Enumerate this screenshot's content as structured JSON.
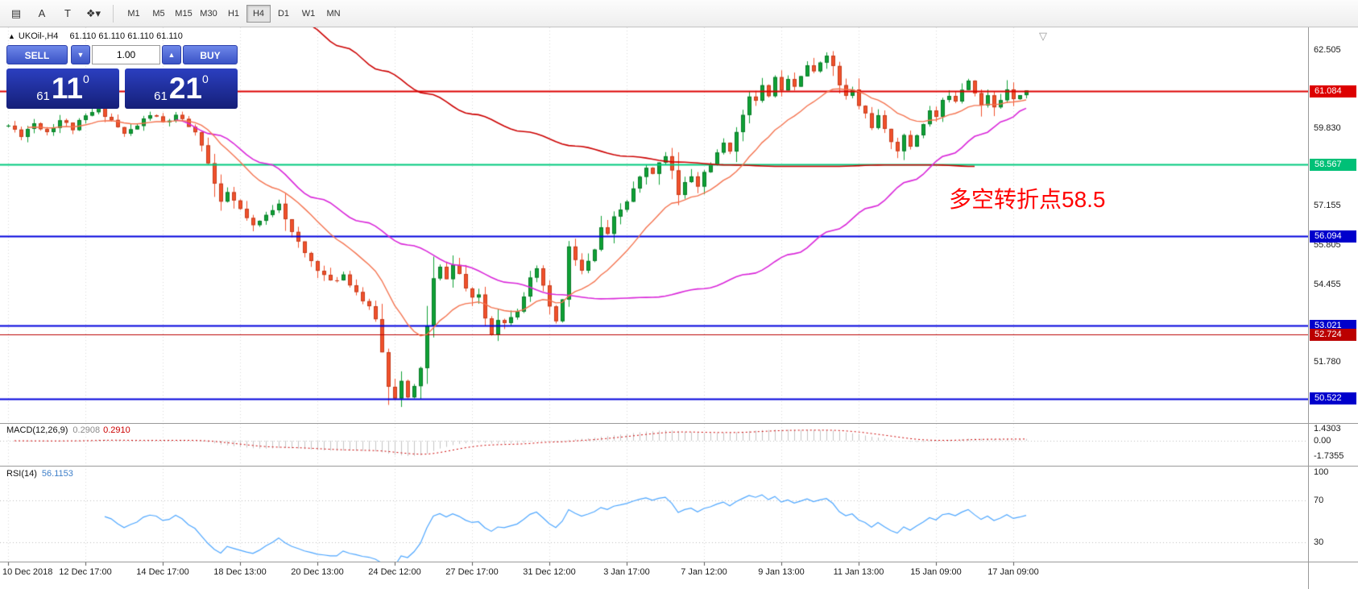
{
  "toolbar": {
    "icons": [
      {
        "name": "chart-grid-icon",
        "glyph": "▤"
      },
      {
        "name": "font-tool-icon",
        "glyph": "A"
      },
      {
        "name": "text-tool-icon",
        "glyph": "T"
      },
      {
        "name": "shapes-dropdown-icon",
        "glyph": "❖▾"
      }
    ],
    "timeframes": [
      {
        "label": "M1"
      },
      {
        "label": "M5"
      },
      {
        "label": "M15"
      },
      {
        "label": "M30"
      },
      {
        "label": "H1"
      },
      {
        "label": "H4",
        "selected": true
      },
      {
        "label": "D1"
      },
      {
        "label": "W1"
      },
      {
        "label": "MN"
      }
    ]
  },
  "symbol_info": {
    "collapse": "▲",
    "text": "UKOil-,H4",
    "ohlc": "61.110 61.110 61.110 61.110"
  },
  "trade_widget": {
    "sell_label": "SELL",
    "buy_label": "BUY",
    "volume": "1.00",
    "spin_down": "▼",
    "spin_up": "▲",
    "sell_price": {
      "small": "61",
      "big": "11",
      "sup": "0"
    },
    "buy_price": {
      "small": "61",
      "big": "21",
      "sup": "0"
    }
  },
  "annotation": {
    "text": "多空转折点58.5",
    "color": "#FF0000"
  },
  "chart_shift_marker": "▽",
  "chart_data": {
    "type": "candlestick",
    "symbol": "UKOil-",
    "timeframe": "H4",
    "bars": 159,
    "last_close": 61.11,
    "close_anchors": [
      [
        0,
        59.9
      ],
      [
        2,
        59.6
      ],
      [
        4,
        60.0
      ],
      [
        6,
        59.7
      ],
      [
        8,
        60.1
      ],
      [
        10,
        59.8
      ],
      [
        12,
        60.2
      ],
      [
        14,
        60.5
      ],
      [
        16,
        60.1
      ],
      [
        18,
        59.6
      ],
      [
        20,
        59.9
      ],
      [
        22,
        60.3
      ],
      [
        24,
        60.0
      ],
      [
        26,
        60.2
      ],
      [
        28,
        59.9
      ],
      [
        30,
        59.3
      ],
      [
        32,
        57.9
      ],
      [
        33,
        57.2
      ],
      [
        34,
        57.6
      ],
      [
        36,
        57.0
      ],
      [
        38,
        56.4
      ],
      [
        40,
        56.8
      ],
      [
        42,
        57.3
      ],
      [
        44,
        56.2
      ],
      [
        46,
        55.5
      ],
      [
        48,
        55.0
      ],
      [
        50,
        54.5
      ],
      [
        52,
        54.8
      ],
      [
        54,
        54.2
      ],
      [
        55,
        53.9
      ],
      [
        56,
        53.6
      ],
      [
        57,
        53.3
      ],
      [
        58,
        52.1
      ],
      [
        59,
        51.0
      ],
      [
        60,
        50.6
      ],
      [
        61,
        51.1
      ],
      [
        62,
        50.5
      ],
      [
        63,
        50.9
      ],
      [
        64,
        51.6
      ],
      [
        65,
        53.0
      ],
      [
        66,
        54.6
      ],
      [
        67,
        55.0
      ],
      [
        68,
        54.7
      ],
      [
        69,
        55.1
      ],
      [
        70,
        54.8
      ],
      [
        71,
        54.3
      ],
      [
        72,
        53.9
      ],
      [
        73,
        54.1
      ],
      [
        74,
        53.3
      ],
      [
        75,
        52.8
      ],
      [
        76,
        53.3
      ],
      [
        77,
        53.1
      ],
      [
        78,
        53.4
      ],
      [
        79,
        53.6
      ],
      [
        80,
        54.1
      ],
      [
        81,
        54.6
      ],
      [
        82,
        54.9
      ],
      [
        83,
        54.4
      ],
      [
        84,
        53.6
      ],
      [
        85,
        53.2
      ],
      [
        86,
        53.9
      ],
      [
        87,
        55.7
      ],
      [
        88,
        55.3
      ],
      [
        89,
        54.9
      ],
      [
        90,
        55.2
      ],
      [
        91,
        55.6
      ],
      [
        92,
        56.4
      ],
      [
        93,
        56.1
      ],
      [
        94,
        56.7
      ],
      [
        95,
        57.0
      ],
      [
        96,
        57.3
      ],
      [
        97,
        57.7
      ],
      [
        98,
        58.1
      ],
      [
        99,
        58.4
      ],
      [
        100,
        58.2
      ],
      [
        101,
        58.7
      ],
      [
        102,
        58.9
      ],
      [
        103,
        58.4
      ],
      [
        104,
        57.5
      ],
      [
        105,
        57.9
      ],
      [
        106,
        58.2
      ],
      [
        107,
        57.8
      ],
      [
        108,
        58.3
      ],
      [
        109,
        58.6
      ],
      [
        110,
        58.9
      ],
      [
        111,
        59.3
      ],
      [
        112,
        59.1
      ],
      [
        113,
        59.6
      ],
      [
        114,
        60.3
      ],
      [
        115,
        61.0
      ],
      [
        116,
        60.7
      ],
      [
        117,
        61.2
      ],
      [
        118,
        61.0
      ],
      [
        119,
        61.5
      ],
      [
        120,
        61.2
      ],
      [
        121,
        61.6
      ],
      [
        122,
        61.3
      ],
      [
        123,
        61.7
      ],
      [
        124,
        62.0
      ],
      [
        125,
        61.7
      ],
      [
        126,
        62.1
      ],
      [
        127,
        62.4
      ],
      [
        128,
        61.9
      ],
      [
        129,
        61.3
      ],
      [
        130,
        60.9
      ],
      [
        131,
        61.1
      ],
      [
        132,
        60.6
      ],
      [
        133,
        60.3
      ],
      [
        134,
        59.9
      ],
      [
        135,
        60.2
      ],
      [
        136,
        59.7
      ],
      [
        137,
        59.4
      ],
      [
        138,
        59.1
      ],
      [
        139,
        59.5
      ],
      [
        140,
        59.2
      ],
      [
        141,
        59.6
      ],
      [
        142,
        60.0
      ],
      [
        143,
        60.4
      ],
      [
        144,
        60.2
      ],
      [
        145,
        60.7
      ],
      [
        146,
        61.0
      ],
      [
        147,
        60.8
      ],
      [
        148,
        61.2
      ],
      [
        149,
        61.5
      ],
      [
        150,
        61.1
      ],
      [
        151,
        60.6
      ],
      [
        152,
        60.9
      ],
      [
        153,
        60.5
      ],
      [
        154,
        60.8
      ],
      [
        155,
        61.2
      ],
      [
        156,
        60.9
      ],
      [
        157,
        61.0
      ],
      [
        158,
        61.11
      ]
    ],
    "ma_red_anchors": [
      [
        46,
        63.4
      ],
      [
        52,
        62.6
      ],
      [
        58,
        61.8
      ],
      [
        65,
        61.0
      ],
      [
        72,
        60.3
      ],
      [
        80,
        59.7
      ],
      [
        88,
        59.2
      ],
      [
        96,
        58.85
      ],
      [
        104,
        58.65
      ],
      [
        112,
        58.55
      ],
      [
        120,
        58.5
      ],
      [
        128,
        58.5
      ],
      [
        136,
        58.55
      ],
      [
        144,
        58.55
      ],
      [
        150,
        58.5
      ]
    ],
    "ma_magenta_anchors": [
      [
        26,
        60.1
      ],
      [
        32,
        59.6
      ],
      [
        40,
        58.6
      ],
      [
        48,
        57.4
      ],
      [
        55,
        56.6
      ],
      [
        62,
        55.8
      ],
      [
        70,
        55.1
      ],
      [
        78,
        54.5
      ],
      [
        85,
        54.1
      ],
      [
        92,
        53.95
      ],
      [
        100,
        54.0
      ],
      [
        108,
        54.3
      ],
      [
        115,
        54.8
      ],
      [
        122,
        55.5
      ],
      [
        128,
        56.3
      ],
      [
        134,
        57.1
      ],
      [
        140,
        58.0
      ],
      [
        146,
        58.9
      ],
      [
        151,
        59.6
      ],
      [
        155,
        60.1
      ],
      [
        158,
        60.5
      ]
    ],
    "ma_fast": {
      "type": "ema",
      "period": 16
    },
    "hlines": [
      {
        "price": 61.084,
        "color": "#DD0000",
        "width": 2,
        "label": "61.084",
        "tag": "#DD0000"
      },
      {
        "price": 58.567,
        "color": "#00C97E",
        "width": 2,
        "label": "58.567",
        "tag": "#00C077"
      },
      {
        "price": 56.094,
        "color": "#0000DD",
        "width": 2,
        "label": "56.094",
        "tag": "#0000CC"
      },
      {
        "price": 53.021,
        "color": "#0000DD",
        "width": 2,
        "label": "53.021",
        "tag": "#0000CC"
      },
      {
        "price": 52.724,
        "color": "#BB0000",
        "width": 1,
        "label": "52.724",
        "tag": "#BB0000"
      },
      {
        "price": 50.522,
        "color": "#0000DD",
        "width": 2,
        "label": "50.522",
        "tag": "#0000CC"
      }
    ],
    "price_axis": {
      "plain": [
        "62.505",
        "59.830",
        "57.155",
        "55.805",
        "54.455",
        "51.780"
      ]
    },
    "time_axis": [
      {
        "bar": 0,
        "label": "10 Dec 2018"
      },
      {
        "bar": 12,
        "label": "12 Dec 17:00"
      },
      {
        "bar": 24,
        "label": "14 Dec 17:00"
      },
      {
        "bar": 36,
        "label": "18 Dec 13:00"
      },
      {
        "bar": 48,
        "label": "20 Dec 13:00"
      },
      {
        "bar": 60,
        "label": "24 Dec 12:00"
      },
      {
        "bar": 72,
        "label": "27 Dec 17:00"
      },
      {
        "bar": 84,
        "label": "31 Dec 12:00"
      },
      {
        "bar": 96,
        "label": "3 Jan 17:00"
      },
      {
        "bar": 108,
        "label": "7 Jan 12:00"
      },
      {
        "bar": 120,
        "label": "9 Jan 13:00"
      },
      {
        "bar": 132,
        "label": "11 Jan 13:00"
      },
      {
        "bar": 144,
        "label": "15 Jan 09:00"
      },
      {
        "bar": 156,
        "label": "17 Jan 09:00"
      }
    ],
    "macd": {
      "title": "MACD(12,26,9)",
      "value_main": "0.2908",
      "value_signal": "0.2910",
      "params": [
        12,
        26,
        9
      ],
      "axis": [
        {
          "label": "1.4303",
          "value": 1.4303
        },
        {
          "label": "0.00",
          "value": 0
        },
        {
          "label": "-1.7355",
          "value": -1.7355
        }
      ]
    },
    "rsi": {
      "title": "RSI(14)",
      "value": "56.1153",
      "period": 14,
      "levels": [
        {
          "label": "100",
          "value": 100
        },
        {
          "label": "70",
          "value": 70
        },
        {
          "label": "30",
          "value": 30
        }
      ]
    },
    "colors": {
      "bull": "#0FA136",
      "bull_border": "#0A7A28",
      "bear": "#F1512C",
      "bear_border": "#C43D1D",
      "ma_fast": "#F4734F",
      "ma_mid": "#D926D9",
      "ma_slow": "#CC0000",
      "grid": "#D8D8D8",
      "macd_hist": "#C4C4C4",
      "macd_signal": "#CC0000",
      "rsi_line": "#4DA6FF",
      "level_dotted": "#BBBBBB"
    }
  }
}
